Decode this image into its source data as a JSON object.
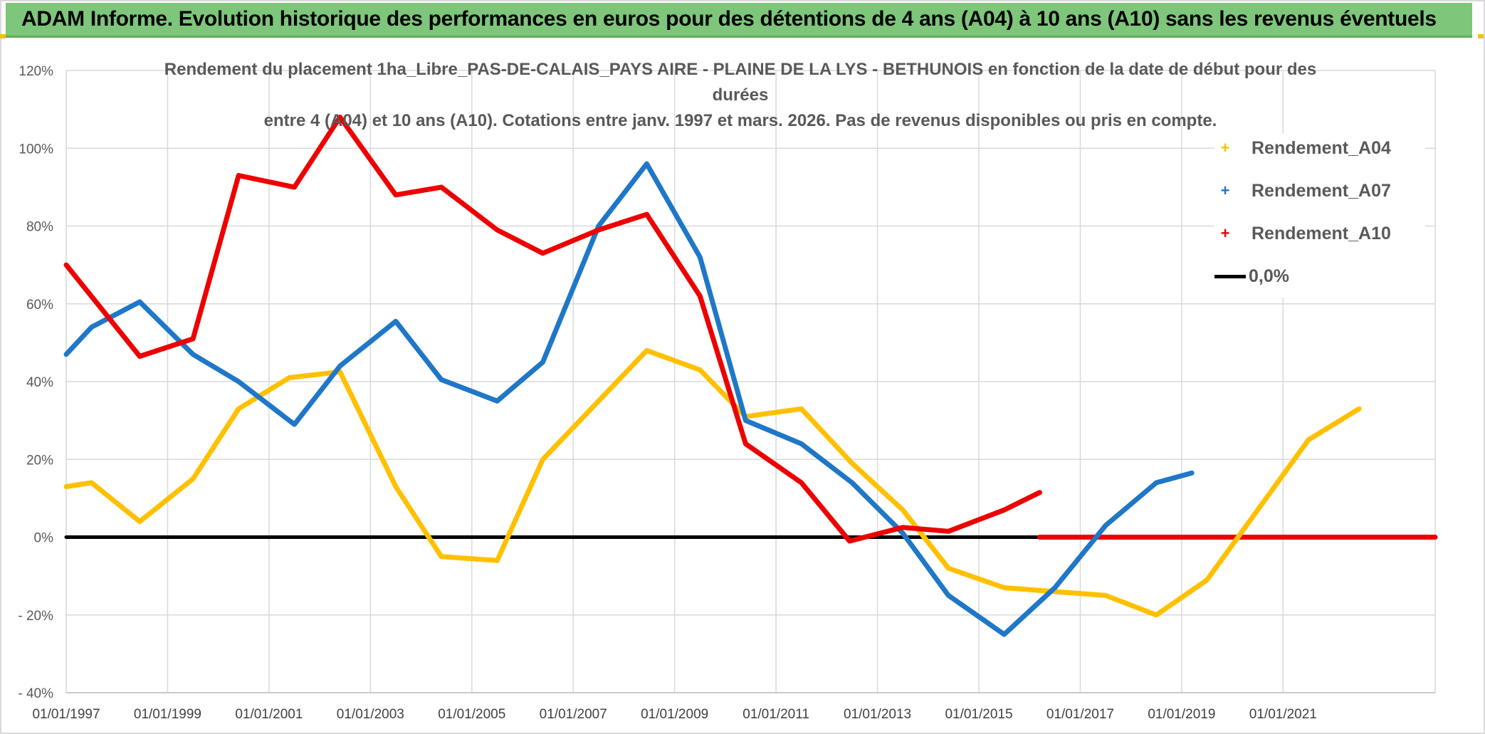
{
  "header": {
    "title": "ADAM Informe. Evolution historique des performances en euros pour des détentions de 4 ans (A04) à 10 ans (A10) sans les revenus éventuels"
  },
  "chart_data": {
    "type": "line",
    "title_line1": "Rendement du placement 1ha_Libre_PAS-DE-CALAIS_PAYS AIRE - PLAINE DE LA LYS - BETHUNOIS en fonction de la date de début pour des durées",
    "title_line2": "entre 4 (A04) et 10 ans (A10). Cotations entre janv. 1997 et mars. 2026. Pas de revenus disponibles ou pris en compte.",
    "xlabel": "",
    "ylabel": "",
    "xlim": [
      1997.0,
      2024.0
    ],
    "ylim": [
      -40,
      120
    ],
    "grid": true,
    "legend_position": "right",
    "x_ticks": [
      {
        "value": 1997,
        "label": "01/01/1997"
      },
      {
        "value": 1999,
        "label": "01/01/1999"
      },
      {
        "value": 2001,
        "label": "01/01/2001"
      },
      {
        "value": 2003,
        "label": "01/01/2003"
      },
      {
        "value": 2005,
        "label": "01/01/2005"
      },
      {
        "value": 2007,
        "label": "01/01/2007"
      },
      {
        "value": 2009,
        "label": "01/01/2009"
      },
      {
        "value": 2011,
        "label": "01/01/2011"
      },
      {
        "value": 2013,
        "label": "01/01/2013"
      },
      {
        "value": 2015,
        "label": "01/01/2015"
      },
      {
        "value": 2017,
        "label": "01/01/2017"
      },
      {
        "value": 2019,
        "label": "01/01/2019"
      },
      {
        "value": 2021,
        "label": "01/01/2021"
      }
    ],
    "y_ticks": [
      {
        "value": 120,
        "label": "120%"
      },
      {
        "value": 100,
        "label": "100%"
      },
      {
        "value": 80,
        "label": "80%"
      },
      {
        "value": 60,
        "label": "60%"
      },
      {
        "value": 40,
        "label": "40%"
      },
      {
        "value": 20,
        "label": "20%"
      },
      {
        "value": 0,
        "label": "0%"
      },
      {
        "value": -20,
        "label": "- 20%"
      },
      {
        "value": -40,
        "label": "- 40%"
      }
    ],
    "series": [
      {
        "name": "Rendement_A04",
        "color": "#ffc000",
        "x": [
          1997.0,
          1997.5,
          1998.45,
          1999.5,
          2000.4,
          2001.4,
          2002.4,
          2003.5,
          2004.4,
          2005.5,
          2006.4,
          2007.5,
          2008.45,
          2009.5,
          2010.4,
          2011.5,
          2012.5,
          2013.5,
          2014.4,
          2015.5,
          2016.5,
          2017.5,
          2018.5,
          2019.5,
          2020.5,
          2021.5,
          2022.5
        ],
        "values": [
          13,
          14,
          4,
          15,
          33,
          41,
          42.5,
          13,
          -5,
          -6,
          20,
          35,
          48,
          43,
          31,
          33,
          19,
          7,
          -8,
          -13,
          -14,
          -15,
          -20,
          -11,
          7,
          25,
          33
        ]
      },
      {
        "name": "Rendement_A07",
        "color": "#1f77c8",
        "x": [
          1997.0,
          1997.5,
          1998.45,
          1999.5,
          2000.4,
          2001.5,
          2002.4,
          2003.5,
          2004.4,
          2005.5,
          2006.4,
          2007.5,
          2008.45,
          2009.5,
          2010.4,
          2011.5,
          2012.5,
          2013.5,
          2014.4,
          2015.5,
          2016.5,
          2017.5,
          2018.5,
          2019.2
        ],
        "values": [
          47,
          54,
          60.5,
          47,
          40,
          29,
          44,
          55.5,
          40.5,
          35,
          45,
          80,
          96,
          72,
          30,
          24,
          14,
          1,
          -15,
          -25,
          -13,
          3,
          14,
          16.5
        ]
      },
      {
        "name": "Rendement_A10",
        "color": "#ee0000",
        "x": [
          1997.0,
          1998.45,
          1999.5,
          2000.4,
          2001.5,
          2002.4,
          2003.5,
          2004.4,
          2005.5,
          2006.4,
          2007.5,
          2008.45,
          2009.5,
          2010.4,
          2011.5,
          2012.45,
          2013.5,
          2014.4,
          2015.5,
          2016.2
        ],
        "values": [
          70,
          46.5,
          51,
          93,
          90,
          108,
          88,
          90,
          79,
          73,
          79,
          83,
          62,
          24,
          14,
          -1,
          2.5,
          1.5,
          7,
          11.5
        ]
      },
      {
        "name": "Rendement_A10_zero",
        "color": "#ee0000",
        "x": [
          2016.2,
          2024.0
        ],
        "values": [
          0,
          0
        ]
      },
      {
        "name": "0,0%",
        "color": "#000000",
        "x": [
          1997.0,
          2016.2
        ],
        "values": [
          0,
          0
        ]
      }
    ]
  },
  "legend": [
    {
      "label": "Rendement_A04",
      "color": "#ffc000",
      "marker": "+"
    },
    {
      "label": "Rendement_A07",
      "color": "#1f77c8",
      "marker": "+"
    },
    {
      "label": "Rendement_A10",
      "color": "#ee0000",
      "marker": "+"
    },
    {
      "label": "0,0%",
      "color": "#000000",
      "marker": "line"
    }
  ]
}
